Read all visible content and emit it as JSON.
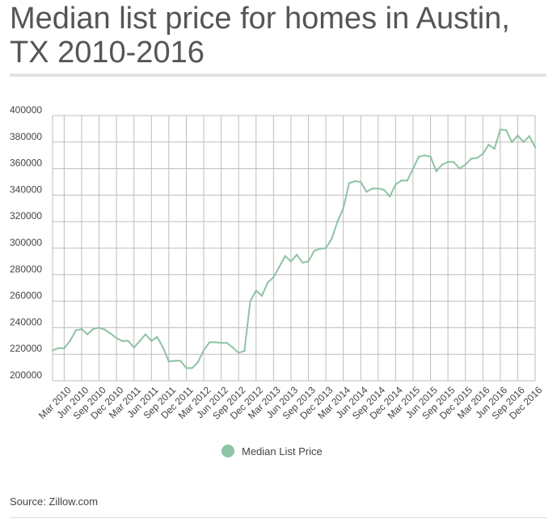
{
  "page": {
    "title": "Median list price for homes in Austin, TX 2010-2016",
    "source": "Source: Zillow.com"
  },
  "colors": {
    "line": "#8ec3a3",
    "grid": "#bdbdbd",
    "axis": "#444444"
  },
  "chart_data": {
    "type": "line",
    "title": "Median list price for homes in Austin, TX 2010-2016",
    "legend": "bottom",
    "grid": true,
    "ylim": [
      200000,
      400000
    ],
    "yticks": [
      200000,
      220000,
      240000,
      260000,
      280000,
      300000,
      320000,
      340000,
      360000,
      380000,
      400000
    ],
    "x_tick_labels": [
      "Mar 2010",
      "Jun 2010",
      "Sep 2010",
      "Dec 2010",
      "Mar 2011",
      "Jun 2011",
      "Sep 2011",
      "Dec 2011",
      "Mar 2012",
      "Jun 2012",
      "Sep 2012",
      "Dec 2012",
      "Mar 2013",
      "Jun 2013",
      "Sep 2013",
      "Dec 2013",
      "Mar 2014",
      "Jun 2014",
      "Sep 2014",
      "Dec 2014",
      "Mar 2015",
      "Jun 2015",
      "Sep 2015",
      "Dec 2015",
      "Mar 2016",
      "Jun 2016",
      "Sep 2016",
      "Dec 2016"
    ],
    "series": [
      {
        "name": "Median List Price",
        "x": [
          "Jan 2010",
          "Feb 2010",
          "Mar 2010",
          "Apr 2010",
          "May 2010",
          "Jun 2010",
          "Jul 2010",
          "Aug 2010",
          "Sep 2010",
          "Oct 2010",
          "Nov 2010",
          "Dec 2010",
          "Jan 2011",
          "Feb 2011",
          "Mar 2011",
          "Apr 2011",
          "May 2011",
          "Jun 2011",
          "Jul 2011",
          "Aug 2011",
          "Sep 2011",
          "Oct 2011",
          "Nov 2011",
          "Dec 2011",
          "Jan 2012",
          "Feb 2012",
          "Mar 2012",
          "Apr 2012",
          "May 2012",
          "Jun 2012",
          "Jul 2012",
          "Aug 2012",
          "Sep 2012",
          "Oct 2012",
          "Nov 2012",
          "Dec 2012",
          "Jan 2013",
          "Feb 2013",
          "Mar 2013",
          "Apr 2013",
          "May 2013",
          "Jun 2013",
          "Jul 2013",
          "Aug 2013",
          "Sep 2013",
          "Oct 2013",
          "Nov 2013",
          "Dec 2013",
          "Jan 2014",
          "Feb 2014",
          "Mar 2014",
          "Apr 2014",
          "May 2014",
          "Jun 2014",
          "Jul 2014",
          "Aug 2014",
          "Sep 2014",
          "Oct 2014",
          "Nov 2014",
          "Dec 2014",
          "Jan 2015",
          "Feb 2015",
          "Mar 2015",
          "Apr 2015",
          "May 2015",
          "Jun 2015",
          "Jul 2015",
          "Aug 2015",
          "Sep 2015",
          "Oct 2015",
          "Nov 2015",
          "Dec 2015",
          "Jan 2016",
          "Feb 2016",
          "Mar 2016",
          "Apr 2016",
          "May 2016",
          "Jun 2016",
          "Jul 2016",
          "Aug 2016",
          "Sep 2016",
          "Oct 2016",
          "Nov 2016",
          "Dec 2016"
        ],
        "values": [
          223000,
          224500,
          224500,
          230000,
          238000,
          239000,
          235000,
          239000,
          240000,
          238500,
          235500,
          232000,
          230000,
          230000,
          225000,
          230000,
          235000,
          230000,
          233000,
          225000,
          214500,
          215000,
          215000,
          209500,
          209500,
          214000,
          223000,
          229000,
          229000,
          228500,
          228500,
          225000,
          221000,
          222500,
          260000,
          268000,
          264000,
          274000,
          278000,
          286000,
          294000,
          290000,
          295000,
          289000,
          290000,
          298000,
          299500,
          300000,
          307000,
          320000,
          330000,
          349000,
          350500,
          350000,
          342500,
          345000,
          345000,
          344000,
          339000,
          348000,
          351000,
          351000,
          360000,
          369000,
          370000,
          369000,
          358000,
          363000,
          365000,
          365000,
          360000,
          363000,
          367500,
          368000,
          371000,
          378000,
          375000,
          389500,
          389000,
          380000,
          385000,
          380000,
          384500,
          376000
        ]
      }
    ]
  }
}
